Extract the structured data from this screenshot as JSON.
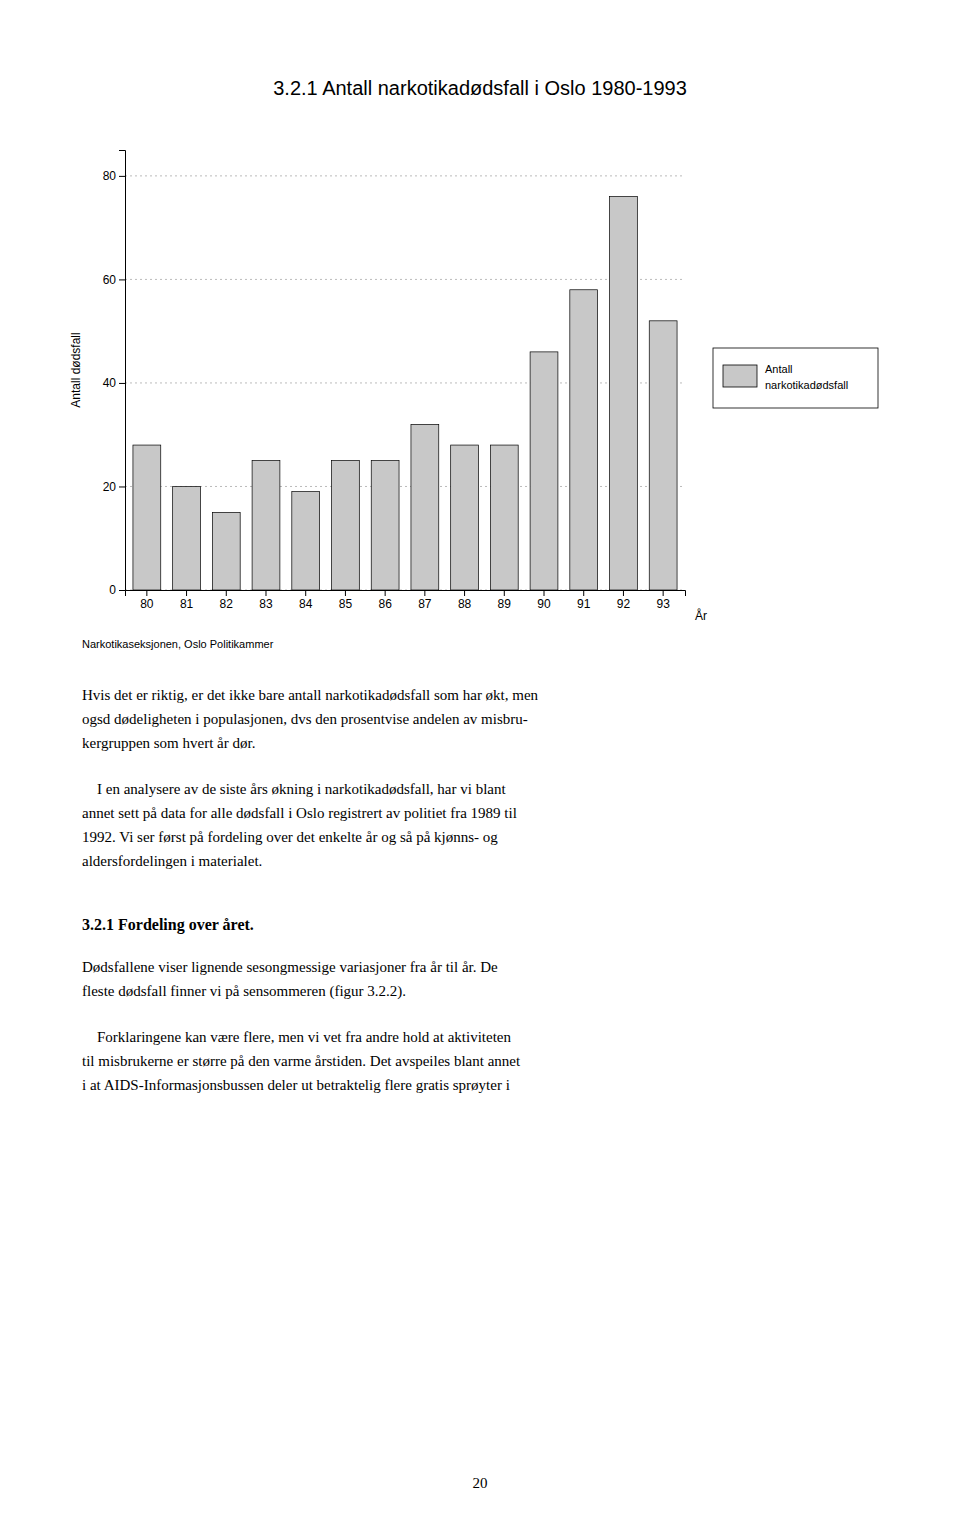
{
  "chart_data": {
    "type": "bar",
    "title": "3.2.1  Antall narkotikadødsfall i Oslo 1980-1993",
    "ylabel": "Antall dødsfall",
    "xlabel": "År",
    "annotations": [
      "Narkotikaseksjonen, Oslo Politikammer"
    ],
    "categories": [
      "80",
      "81",
      "82",
      "83",
      "84",
      "85",
      "86",
      "87",
      "88",
      "89",
      "90",
      "91",
      "92",
      "93"
    ],
    "series": [
      {
        "name": "Antall narkotikadødsfall",
        "color": "#c8c8c8",
        "values": [
          28,
          20,
          15,
          25,
          19,
          25,
          25,
          32,
          28,
          28,
          46,
          58,
          76,
          52
        ]
      }
    ],
    "ylim": [
      0,
      85
    ],
    "yticks": [
      0,
      20,
      40,
      60,
      80
    ],
    "grid": true,
    "legend": "right"
  },
  "page": {
    "paragraphs_before": [
      "Hvis det er riktig, er det ikke bare antall narkotikadødsfall som har økt, men\nogsd dødeligheten i populasjonen, dvs den prosentvise andelen av misbru-\nkergruppen som hvert år dør.",
      "    I en analysere av de siste års økning i narkotikadødsfall, har vi blant\nannet sett på data for alle dødsfall i Oslo registrert av politiet fra 1989 til\n1992. Vi ser først på fordeling over det enkelte år og så på kjønns- og\naldersfordelingen i materialet."
    ],
    "heading": "3.2.1 Fordeling over året.",
    "paragraphs_after": [
      "Dødsfallene viser lignende sesongmessige variasjoner fra år til år. De\nfleste dødsfall finner vi på sensommeren (figur 3.2.2).",
      "    Forklaringene kan være flere, men vi vet fra andre hold at aktiviteten\ntil misbrukerne er større på den varme årstiden. Det avspeiles blant annet\ni at AIDS-Informasjonsbussen deler ut betraktelig flere gratis sprøyter i"
    ],
    "page_number": "20"
  }
}
